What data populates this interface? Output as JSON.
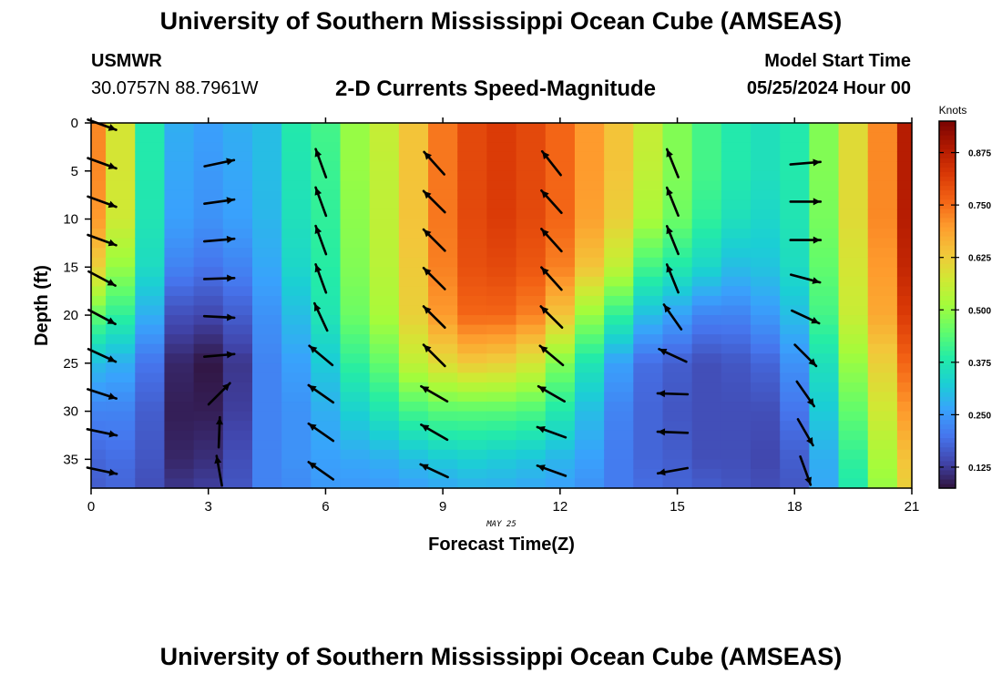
{
  "header": {
    "title": "University of Southern Mississippi Ocean Cube (AMSEAS)",
    "station": "USMWR",
    "coordinates": "30.0757N  88.7961W",
    "plot_title": "2-D Currents Speed-Magnitude",
    "start_label": "Model Start Time",
    "start_value": "05/25/2024 Hour 00"
  },
  "footer": {
    "title": "University of Southern Mississippi Ocean Cube (AMSEAS)"
  },
  "chart_data": {
    "type": "heatmap",
    "title": "2-D Currents Speed-Magnitude",
    "xlabel": "Forecast Time(Z)",
    "ylabel": "Depth (ft)",
    "date_label": "MAY 25",
    "xlim": [
      0,
      21
    ],
    "ylim": [
      0,
      38
    ],
    "y_inverted": true,
    "x_ticks": [
      0,
      3,
      6,
      9,
      12,
      15,
      18,
      21
    ],
    "y_ticks": [
      0,
      5,
      10,
      15,
      20,
      25,
      30,
      35
    ],
    "colorbar": {
      "label": "Knots",
      "min": 0.075,
      "max": 0.95,
      "ticks": [
        "0.125",
        "0.250",
        "0.375",
        "0.500",
        "0.625",
        "0.750",
        "0.875"
      ],
      "colormap": [
        "#30123b",
        "#4145ab",
        "#4675ed",
        "#39a2fc",
        "#1bcfd4",
        "#24eca6",
        "#61fc6c",
        "#a4fc3b",
        "#d1e834",
        "#f3c63a",
        "#fe9b2d",
        "#f36315",
        "#d93806",
        "#b11901",
        "#7a0402"
      ]
    },
    "hours": [
      0,
      0.75,
      1.5,
      2.25,
      3,
      3.75,
      4.5,
      5.25,
      6,
      6.75,
      7.5,
      8.25,
      9,
      9.75,
      10.5,
      11.25,
      12,
      12.75,
      13.5,
      14.25,
      15,
      15.75,
      16.5,
      17.25,
      18,
      18.75,
      19.5,
      20.25,
      21
    ],
    "depth_profiles_ft": [
      0,
      5,
      10,
      15,
      20,
      25,
      30,
      35,
      38
    ],
    "speed_profiles_knots": [
      [
        0.72,
        0.72,
        0.7,
        0.62,
        0.45,
        0.3,
        0.22,
        0.18,
        0.17
      ],
      [
        0.58,
        0.58,
        0.57,
        0.5,
        0.4,
        0.28,
        0.22,
        0.19,
        0.18
      ],
      [
        0.38,
        0.38,
        0.37,
        0.35,
        0.28,
        0.2,
        0.17,
        0.16,
        0.15
      ],
      [
        0.28,
        0.27,
        0.26,
        0.22,
        0.15,
        0.1,
        0.09,
        0.1,
        0.12
      ],
      [
        0.26,
        0.25,
        0.24,
        0.2,
        0.14,
        0.08,
        0.09,
        0.11,
        0.13
      ],
      [
        0.28,
        0.27,
        0.26,
        0.22,
        0.17,
        0.12,
        0.13,
        0.15,
        0.16
      ],
      [
        0.3,
        0.3,
        0.29,
        0.27,
        0.24,
        0.22,
        0.22,
        0.22,
        0.22
      ],
      [
        0.38,
        0.37,
        0.36,
        0.34,
        0.3,
        0.26,
        0.24,
        0.24,
        0.23
      ],
      [
        0.42,
        0.41,
        0.4,
        0.39,
        0.37,
        0.32,
        0.28,
        0.26,
        0.25
      ],
      [
        0.5,
        0.5,
        0.49,
        0.48,
        0.46,
        0.4,
        0.33,
        0.27,
        0.25
      ],
      [
        0.56,
        0.55,
        0.55,
        0.54,
        0.52,
        0.45,
        0.37,
        0.28,
        0.25
      ],
      [
        0.64,
        0.64,
        0.64,
        0.63,
        0.62,
        0.55,
        0.42,
        0.3,
        0.26
      ],
      [
        0.74,
        0.74,
        0.74,
        0.73,
        0.7,
        0.6,
        0.44,
        0.32,
        0.27
      ],
      [
        0.8,
        0.8,
        0.8,
        0.79,
        0.76,
        0.63,
        0.44,
        0.33,
        0.28
      ],
      [
        0.82,
        0.82,
        0.82,
        0.8,
        0.76,
        0.62,
        0.44,
        0.32,
        0.28
      ],
      [
        0.8,
        0.8,
        0.8,
        0.78,
        0.73,
        0.58,
        0.43,
        0.31,
        0.27
      ],
      [
        0.76,
        0.76,
        0.76,
        0.73,
        0.64,
        0.48,
        0.38,
        0.29,
        0.26
      ],
      [
        0.7,
        0.7,
        0.69,
        0.64,
        0.5,
        0.37,
        0.3,
        0.26,
        0.24
      ],
      [
        0.64,
        0.64,
        0.62,
        0.55,
        0.4,
        0.26,
        0.22,
        0.21,
        0.21
      ],
      [
        0.56,
        0.55,
        0.52,
        0.42,
        0.3,
        0.19,
        0.18,
        0.18,
        0.19
      ],
      [
        0.48,
        0.48,
        0.46,
        0.38,
        0.26,
        0.17,
        0.16,
        0.17,
        0.18
      ],
      [
        0.42,
        0.42,
        0.4,
        0.34,
        0.22,
        0.15,
        0.15,
        0.15,
        0.17
      ],
      [
        0.38,
        0.38,
        0.36,
        0.3,
        0.22,
        0.16,
        0.15,
        0.15,
        0.16
      ],
      [
        0.36,
        0.36,
        0.34,
        0.31,
        0.25,
        0.18,
        0.15,
        0.14,
        0.15
      ],
      [
        0.38,
        0.38,
        0.37,
        0.35,
        0.3,
        0.24,
        0.2,
        0.17,
        0.16
      ],
      [
        0.48,
        0.48,
        0.47,
        0.45,
        0.42,
        0.36,
        0.32,
        0.28,
        0.27
      ],
      [
        0.6,
        0.6,
        0.6,
        0.58,
        0.56,
        0.5,
        0.45,
        0.4,
        0.38
      ],
      [
        0.72,
        0.72,
        0.72,
        0.7,
        0.68,
        0.62,
        0.57,
        0.52,
        0.5
      ],
      [
        0.88,
        0.88,
        0.88,
        0.86,
        0.82,
        0.76,
        0.7,
        0.64,
        0.62
      ]
    ],
    "vectors": {
      "hours": [
        0,
        3,
        5.6,
        8.5,
        11.5,
        14.6,
        18
      ],
      "depths_ft": [
        0,
        4,
        8,
        12,
        16,
        20,
        24,
        28,
        32,
        36
      ],
      "angle_deg_from_east": [
        [
          -20,
          -20,
          -20,
          -20,
          -28,
          -28,
          -25,
          -18,
          -12,
          -12
        ],
        [
          null,
          12,
          8,
          5,
          2,
          -3,
          5,
          45,
          88,
          100
        ],
        [
          null,
          110,
          110,
          110,
          110,
          115,
          140,
          145,
          145,
          145
        ],
        [
          null,
          132,
          135,
          135,
          135,
          135,
          135,
          150,
          150,
          155
        ],
        [
          null,
          128,
          132,
          132,
          132,
          135,
          140,
          150,
          160,
          160
        ],
        [
          null,
          112,
          112,
          112,
          112,
          125,
          155,
          178,
          178,
          190
        ],
        [
          null,
          5,
          0,
          0,
          -15,
          -25,
          -45,
          -55,
          -60,
          -70
        ]
      ],
      "speed_knots": [
        [
          0.7,
          0.7,
          0.68,
          0.6,
          0.45,
          0.3,
          0.22,
          0.2,
          0.18,
          0.17
        ],
        [
          null,
          0.25,
          0.24,
          0.23,
          0.2,
          0.16,
          0.12,
          0.09,
          0.1,
          0.12
        ],
        [
          null,
          0.41,
          0.4,
          0.39,
          0.38,
          0.36,
          0.32,
          0.28,
          0.26,
          0.25
        ],
        [
          null,
          0.74,
          0.74,
          0.73,
          0.72,
          0.68,
          0.58,
          0.44,
          0.32,
          0.27
        ],
        [
          null,
          0.76,
          0.76,
          0.73,
          0.66,
          0.6,
          0.48,
          0.38,
          0.29,
          0.26
        ],
        [
          null,
          0.48,
          0.48,
          0.46,
          0.38,
          0.26,
          0.17,
          0.16,
          0.17,
          0.18
        ],
        [
          null,
          0.38,
          0.38,
          0.37,
          0.35,
          0.3,
          0.24,
          0.2,
          0.17,
          0.16
        ]
      ]
    }
  }
}
